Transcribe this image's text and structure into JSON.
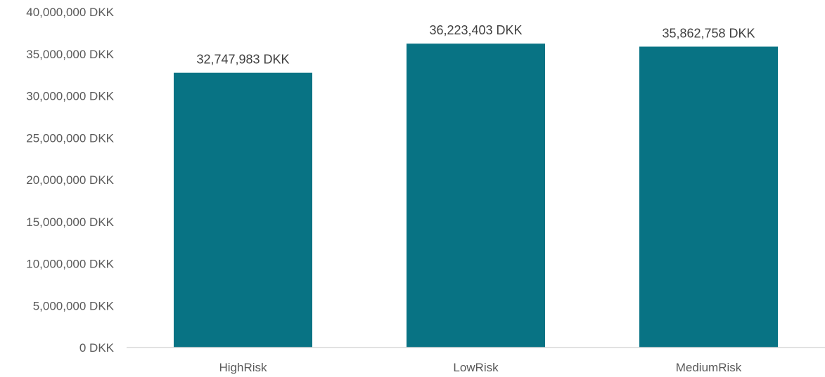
{
  "chart_data": {
    "type": "bar",
    "categories": [
      "HighRisk",
      "LowRisk",
      "MediumRisk"
    ],
    "values": [
      32747983,
      36223403,
      35862758
    ],
    "data_labels": [
      "32,747,983 DKK",
      "36,223,403 DKK",
      "35,862,758 DKK"
    ],
    "ylim": [
      0,
      40000000
    ],
    "y_ticks": [
      0,
      5000000,
      10000000,
      15000000,
      20000000,
      25000000,
      30000000,
      35000000,
      40000000
    ],
    "y_tick_labels": [
      "0 DKK",
      "5,000,000 DKK",
      "10,000,000 DKK",
      "15,000,000 DKK",
      "20,000,000 DKK",
      "25,000,000 DKK",
      "30,000,000 DKK",
      "35,000,000 DKK",
      "40,000,000 DKK"
    ],
    "title": "",
    "xlabel": "",
    "ylabel": "",
    "grid": false,
    "legend": "none",
    "bar_color": "#087384",
    "axis_color": "#d9d9d9"
  }
}
